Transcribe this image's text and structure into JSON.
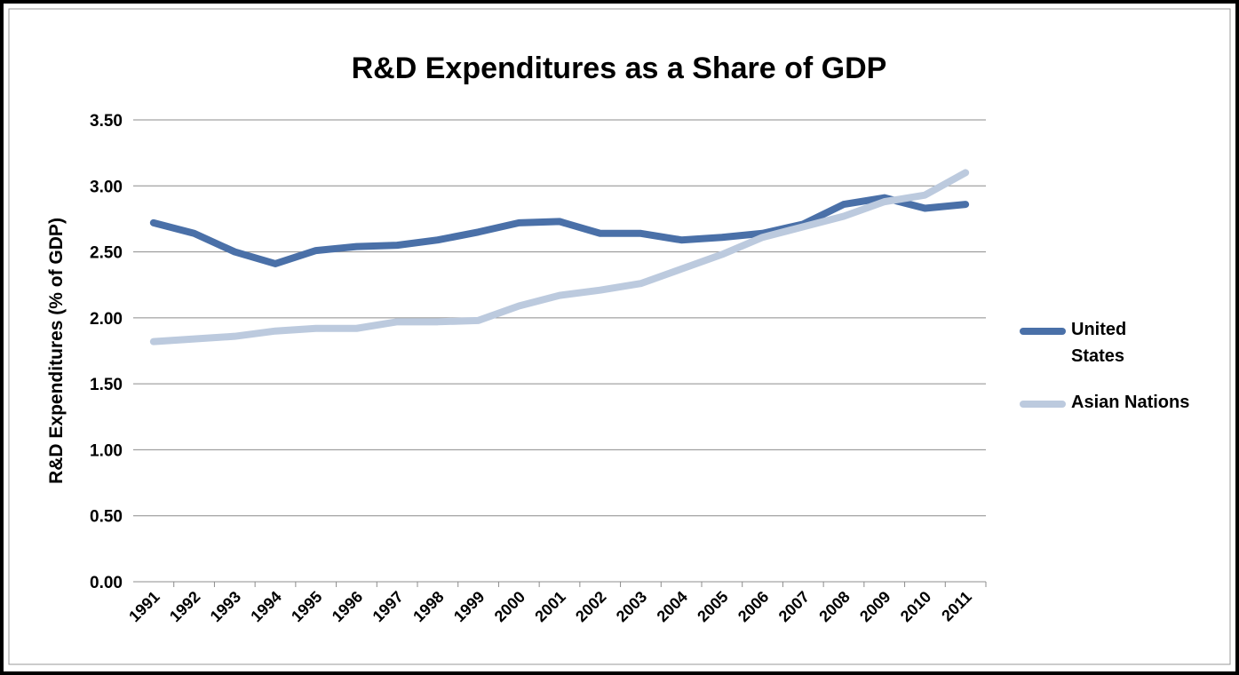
{
  "chart_data": {
    "type": "line",
    "title": "R&D Expenditures as a Share of GDP",
    "y_label": "R&D Expenditures (% of GDP)",
    "categories": [
      "1991",
      "1992",
      "1993",
      "1994",
      "1995",
      "1996",
      "1997",
      "1998",
      "1999",
      "2000",
      "2001",
      "2002",
      "2003",
      "2004",
      "2005",
      "2006",
      "2007",
      "2008",
      "2009",
      "2010",
      "2011"
    ],
    "series": [
      {
        "name": "United States",
        "color": "#4a70a8",
        "values": [
          2.72,
          2.64,
          2.5,
          2.41,
          2.51,
          2.54,
          2.55,
          2.59,
          2.65,
          2.72,
          2.73,
          2.64,
          2.64,
          2.59,
          2.61,
          2.64,
          2.71,
          2.86,
          2.91,
          2.83,
          2.86
        ]
      },
      {
        "name": "Asian Nations",
        "color": "#bccade",
        "values": [
          1.82,
          1.84,
          1.86,
          1.9,
          1.92,
          1.92,
          1.97,
          1.97,
          1.98,
          2.09,
          2.17,
          2.21,
          2.26,
          2.37,
          2.48,
          2.61,
          2.69,
          2.77,
          2.88,
          2.93,
          3.1
        ]
      }
    ],
    "ylim": [
      0,
      3.5
    ],
    "yticks": [
      {
        "value": 0,
        "label": "0.00"
      },
      {
        "value": 0.5,
        "label": "0.50"
      },
      {
        "value": 1,
        "label": "1.00"
      },
      {
        "value": 1.5,
        "label": "1.50"
      },
      {
        "value": 2,
        "label": "2.00"
      },
      {
        "value": 2.5,
        "label": "2.50"
      },
      {
        "value": 3,
        "label": "3.00"
      },
      {
        "value": 3.5,
        "label": "3.50"
      }
    ],
    "grid": true,
    "legend": "right"
  }
}
